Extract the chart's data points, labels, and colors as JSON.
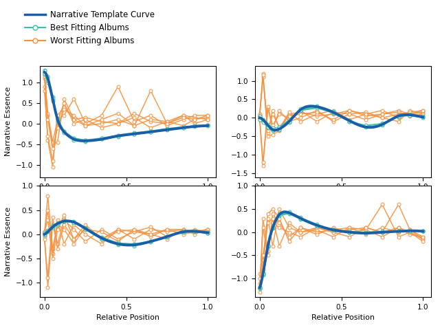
{
  "legend_labels": [
    "Narrative Template Curve",
    "Best Fitting Albums",
    "Worst Fitting Albums"
  ],
  "template_color": "#1a5ea8",
  "best_color": "#3abfa8",
  "worst_color": "#f59240",
  "template_lw": 2.8,
  "album_lw": 1.1,
  "marker": "o",
  "markersize": 3.5,
  "xlabel": "Relative Position",
  "ylabel": "Narrative Essence",
  "panels": [
    {
      "name": "top_left",
      "template_x": [
        0.0,
        0.02,
        0.05,
        0.08,
        0.12,
        0.18,
        0.25,
        0.35,
        0.45,
        0.55,
        0.65,
        0.75,
        0.85,
        0.92,
        1.0
      ],
      "template_y": [
        1.25,
        1.1,
        0.6,
        0.1,
        -0.2,
        -0.38,
        -0.42,
        -0.38,
        -0.3,
        -0.25,
        -0.2,
        -0.15,
        -0.1,
        -0.07,
        -0.05
      ],
      "best_albums": [
        [
          1.2,
          1.0,
          0.55,
          0.05,
          -0.2,
          -0.35,
          -0.4,
          -0.35,
          -0.28,
          -0.22,
          -0.18,
          -0.12,
          -0.08,
          -0.05,
          -0.03
        ],
        [
          1.3,
          1.15,
          0.65,
          0.12,
          -0.18,
          -0.36,
          -0.44,
          -0.38,
          -0.32,
          -0.26,
          -0.21,
          -0.16,
          -0.11,
          -0.06,
          -0.04
        ],
        [
          1.22,
          1.05,
          0.58,
          0.08,
          -0.22,
          -0.4,
          -0.41,
          -0.37,
          -0.29,
          -0.24,
          -0.19,
          -0.14,
          -0.09,
          -0.07,
          -0.05
        ],
        [
          1.28,
          1.12,
          0.62,
          0.1,
          -0.19,
          -0.37,
          -0.43,
          -0.36,
          -0.31,
          -0.25,
          -0.2,
          -0.13,
          -0.1,
          -0.06,
          -0.04
        ]
      ],
      "worst_albums": [
        [
          1.1,
          0.2,
          -0.5,
          -0.45,
          0.6,
          0.1,
          0.15,
          0.05,
          0.0,
          0.25,
          0.05,
          0.0,
          0.2,
          0.15,
          0.1
        ],
        [
          0.9,
          -0.4,
          -1.05,
          0.2,
          0.4,
          0.1,
          -0.05,
          0.0,
          0.1,
          -0.05,
          0.1,
          0.05,
          -0.05,
          0.1,
          0.15
        ],
        [
          1.2,
          0.25,
          -0.45,
          0.1,
          0.2,
          0.6,
          0.0,
          0.2,
          0.9,
          0.05,
          0.2,
          -0.05,
          0.1,
          0.2,
          0.2
        ],
        [
          0.8,
          -0.3,
          -0.9,
          0.05,
          0.5,
          0.0,
          0.1,
          -0.1,
          0.0,
          0.15,
          -0.1,
          0.05,
          0.2,
          0.0,
          0.1
        ],
        [
          1.15,
          0.1,
          -0.6,
          -0.1,
          0.35,
          0.2,
          -0.05,
          0.1,
          0.25,
          -0.05,
          0.8,
          0.0,
          0.15,
          0.1,
          0.2
        ]
      ],
      "ylim": [
        -1.3,
        1.4
      ]
    },
    {
      "name": "top_right",
      "template_x": [
        0.0,
        0.02,
        0.05,
        0.08,
        0.12,
        0.18,
        0.25,
        0.35,
        0.45,
        0.55,
        0.65,
        0.75,
        0.85,
        0.92,
        1.0
      ],
      "template_y": [
        0.0,
        -0.05,
        -0.2,
        -0.32,
        -0.3,
        -0.1,
        0.22,
        0.3,
        0.15,
        -0.08,
        -0.25,
        -0.18,
        0.05,
        0.08,
        0.02
      ],
      "best_albums": [
        [
          0.05,
          -0.1,
          -0.28,
          -0.35,
          -0.28,
          -0.08,
          0.2,
          0.28,
          0.12,
          -0.1,
          -0.22,
          -0.15,
          0.03,
          0.06,
          0.0
        ],
        [
          0.0,
          -0.05,
          -0.22,
          -0.3,
          -0.32,
          -0.12,
          0.24,
          0.32,
          0.18,
          -0.06,
          -0.24,
          -0.2,
          0.08,
          0.1,
          0.05
        ],
        [
          -0.05,
          -0.08,
          -0.18,
          -0.28,
          -0.25,
          -0.05,
          0.2,
          0.26,
          0.14,
          -0.1,
          -0.2,
          -0.16,
          0.06,
          0.08,
          0.02
        ],
        [
          0.05,
          -0.12,
          -0.25,
          -0.32,
          -0.3,
          -0.1,
          0.22,
          0.3,
          0.16,
          -0.08,
          -0.26,
          -0.18,
          0.04,
          0.07,
          0.03
        ]
      ],
      "worst_albums": [
        [
          0.08,
          1.2,
          -0.5,
          -0.45,
          -0.35,
          0.1,
          0.15,
          0.05,
          0.1,
          0.2,
          0.05,
          0.1,
          0.2,
          0.1,
          0.15
        ],
        [
          -0.05,
          -1.3,
          0.25,
          -0.3,
          0.2,
          -0.1,
          0.0,
          0.2,
          -0.1,
          0.1,
          0.15,
          0.0,
          -0.1,
          0.2,
          0.1
        ],
        [
          0.1,
          1.1,
          -0.4,
          0.2,
          -0.3,
          0.15,
          -0.1,
          0.1,
          0.2,
          -0.05,
          0.1,
          0.2,
          0.0,
          0.1,
          0.2
        ],
        [
          -0.02,
          -1.2,
          0.3,
          -0.2,
          0.1,
          0.0,
          0.2,
          -0.1,
          0.15,
          0.1,
          -0.05,
          0.1,
          0.15,
          0.05,
          0.1
        ],
        [
          0.05,
          1.15,
          -0.35,
          0.1,
          -0.25,
          0.05,
          0.1,
          0.15,
          -0.05,
          0.2,
          0.1,
          0.0,
          0.1,
          0.15,
          0.2
        ]
      ],
      "ylim": [
        -1.6,
        1.4
      ]
    },
    {
      "name": "bottom_left",
      "template_x": [
        0.0,
        0.02,
        0.05,
        0.08,
        0.12,
        0.18,
        0.25,
        0.35,
        0.45,
        0.55,
        0.65,
        0.75,
        0.85,
        0.92,
        1.0
      ],
      "template_y": [
        0.0,
        0.05,
        0.15,
        0.22,
        0.27,
        0.25,
        0.12,
        -0.08,
        -0.2,
        -0.22,
        -0.15,
        -0.05,
        0.05,
        0.06,
        0.03
      ],
      "best_albums": [
        [
          0.02,
          0.08,
          0.18,
          0.24,
          0.28,
          0.26,
          0.14,
          -0.06,
          -0.18,
          -0.2,
          -0.14,
          -0.04,
          0.06,
          0.07,
          0.04
        ],
        [
          -0.02,
          0.05,
          0.14,
          0.2,
          0.26,
          0.24,
          0.1,
          -0.1,
          -0.22,
          -0.24,
          -0.16,
          -0.06,
          0.04,
          0.05,
          0.02
        ],
        [
          0.0,
          0.06,
          0.16,
          0.22,
          0.27,
          0.25,
          0.12,
          -0.08,
          -0.2,
          -0.21,
          -0.15,
          -0.05,
          0.05,
          0.06,
          0.03
        ],
        [
          0.02,
          0.07,
          0.17,
          0.23,
          0.28,
          0.24,
          0.13,
          -0.07,
          -0.19,
          -0.22,
          -0.14,
          -0.04,
          0.06,
          0.07,
          0.03
        ]
      ],
      "worst_albums": [
        [
          0.0,
          0.8,
          -0.3,
          0.2,
          0.1,
          -0.2,
          0.15,
          -0.1,
          0.1,
          0.05,
          0.0,
          0.1,
          0.1,
          0.05,
          0.1
        ],
        [
          -0.05,
          -1.1,
          0.2,
          -0.2,
          0.3,
          0.1,
          -0.15,
          0.1,
          -0.1,
          0.05,
          0.15,
          -0.05,
          0.05,
          0.1,
          0.05
        ],
        [
          0.05,
          0.5,
          -0.4,
          0.3,
          -0.2,
          0.2,
          0.0,
          -0.2,
          0.1,
          -0.1,
          0.1,
          0.05,
          0.1,
          0.0,
          0.1
        ],
        [
          -0.1,
          -0.9,
          0.35,
          -0.3,
          0.2,
          -0.1,
          0.1,
          0.05,
          -0.15,
          0.1,
          -0.05,
          0.1,
          0.0,
          0.05,
          0.1
        ],
        [
          0.05,
          0.3,
          -0.5,
          0.1,
          0.4,
          -0.1,
          0.2,
          -0.1,
          0.05,
          0.1,
          0.0,
          -0.1,
          0.1,
          0.05,
          0.05
        ]
      ],
      "ylim": [
        -1.3,
        1.0
      ]
    },
    {
      "name": "bottom_right",
      "template_x": [
        0.0,
        0.02,
        0.05,
        0.08,
        0.12,
        0.18,
        0.25,
        0.35,
        0.45,
        0.55,
        0.65,
        0.75,
        0.85,
        0.92,
        1.0
      ],
      "template_y": [
        -1.2,
        -0.9,
        -0.3,
        0.1,
        0.38,
        0.42,
        0.3,
        0.15,
        0.05,
        0.0,
        -0.02,
        0.0,
        0.02,
        0.03,
        0.02
      ],
      "best_albums": [
        [
          -1.18,
          -0.88,
          -0.28,
          0.12,
          0.36,
          0.4,
          0.28,
          0.13,
          0.04,
          0.0,
          -0.02,
          0.0,
          0.02,
          0.02,
          0.02
        ],
        [
          -1.22,
          -0.92,
          -0.32,
          0.08,
          0.4,
          0.44,
          0.32,
          0.17,
          0.06,
          0.02,
          0.0,
          0.02,
          0.03,
          0.03,
          0.02
        ],
        [
          -1.2,
          -0.9,
          -0.3,
          0.1,
          0.37,
          0.41,
          0.29,
          0.14,
          0.05,
          0.01,
          -0.01,
          0.01,
          0.02,
          0.02,
          0.02
        ],
        [
          -1.19,
          -0.89,
          -0.29,
          0.11,
          0.38,
          0.42,
          0.3,
          0.15,
          0.05,
          0.0,
          -0.02,
          0.0,
          0.02,
          0.03,
          0.02
        ]
      ],
      "worst_albums": [
        [
          -1.1,
          -0.6,
          0.4,
          0.5,
          0.3,
          -0.2,
          0.1,
          0.0,
          0.05,
          0.1,
          0.05,
          0.6,
          -0.1,
          0.0,
          -0.15
        ],
        [
          -1.3,
          0.3,
          -0.4,
          0.2,
          0.1,
          0.0,
          -0.1,
          0.1,
          0.0,
          -0.1,
          0.1,
          0.0,
          0.1,
          -0.05,
          -0.1
        ],
        [
          -0.9,
          -0.8,
          0.3,
          -0.3,
          0.5,
          0.1,
          0.0,
          0.05,
          -0.1,
          0.1,
          -0.05,
          0.1,
          0.0,
          0.05,
          -0.15
        ],
        [
          -1.2,
          0.1,
          -0.5,
          0.4,
          0.2,
          -0.1,
          0.1,
          -0.05,
          0.1,
          0.0,
          0.05,
          -0.1,
          0.1,
          0.0,
          -0.2
        ],
        [
          -1.0,
          -0.5,
          0.2,
          0.3,
          -0.3,
          0.2,
          0.0,
          0.1,
          0.0,
          0.05,
          0.1,
          0.0,
          0.6,
          0.05,
          -0.1
        ]
      ],
      "ylim": [
        -1.4,
        1.0
      ]
    }
  ]
}
